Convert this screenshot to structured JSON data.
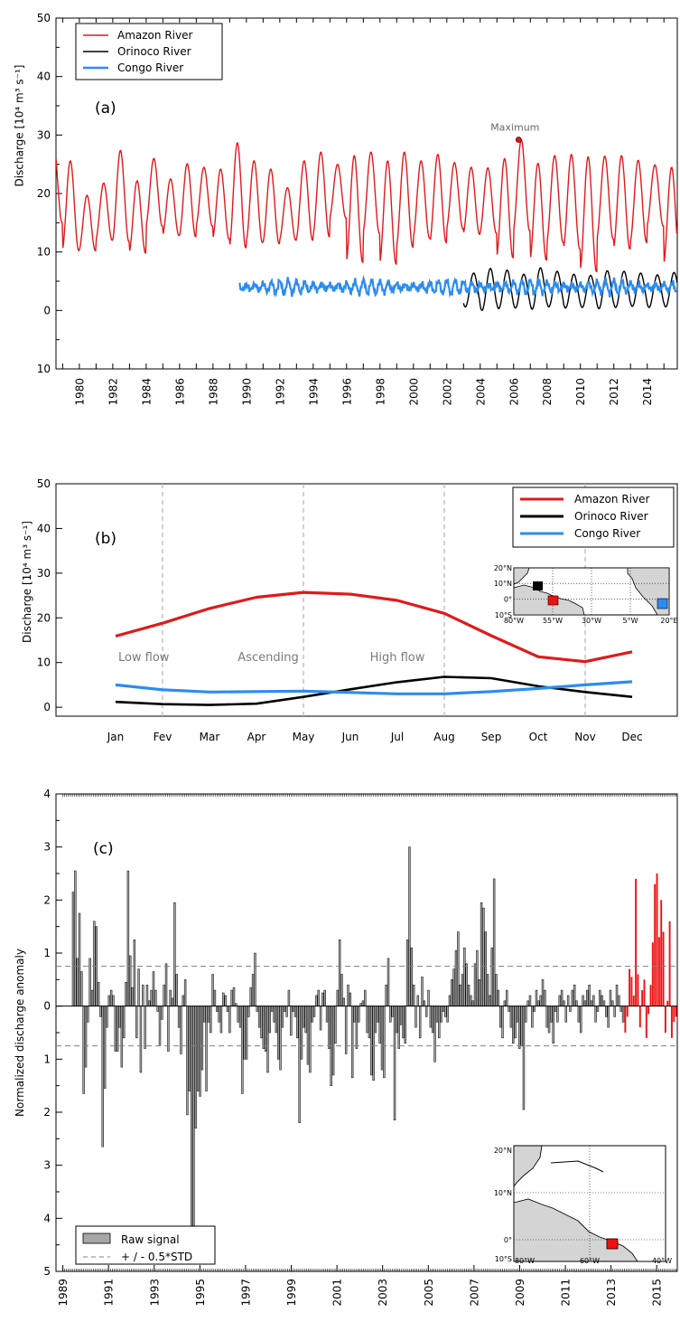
{
  "colors": {
    "amazon": "#e01a1a",
    "orinoco": "#000000",
    "congo": "#2c8cf0",
    "bar_grey": "#a6a6a6",
    "bar_red": "#ee1111",
    "dashed": "#808080",
    "land": "#d4d4d4"
  },
  "chart_data": [
    {
      "type": "line",
      "panel_label": "(a)",
      "ylabel": "Discharge [10⁴ m³ s⁻¹]",
      "ylim": [
        -10,
        50
      ],
      "yticks": [
        -10,
        0,
        10,
        20,
        30,
        40,
        50
      ],
      "ytick_labels": [
        "10",
        "0",
        "10",
        "20",
        "30",
        "40",
        "50"
      ],
      "xlim": [
        1978.6,
        2015.8
      ],
      "xtick_labels": [
        "1980",
        "1982",
        "1984",
        "1986",
        "1988",
        "1990",
        "1992",
        "1994",
        "1996",
        "1998",
        "2000",
        "2002",
        "2004",
        "2006",
        "2008",
        "2010",
        "2012",
        "2014"
      ],
      "legend": {
        "position": "top-left",
        "entries": [
          "Amazon River",
          "Orinoco River",
          "Congo River"
        ]
      },
      "annotation": {
        "text": "Maximum",
        "x": 2006.3,
        "y": 29.2
      },
      "series": [
        {
          "name": "Amazon River",
          "color_key": "amazon",
          "x_start": 1978.6,
          "x_end": 2015.8,
          "peak_month": 5.5,
          "base_mean": 17.8,
          "amplitude": 7.6,
          "year_peaks": [
            28.5,
            25.6,
            19.7,
            21.8,
            27.4,
            22.2,
            26.0,
            22.5,
            25.1,
            24.5,
            24.2,
            28.7,
            25.6,
            24.2,
            21.0,
            25.6,
            27.1,
            25.0,
            26.5,
            27.1,
            25.6,
            27.1,
            25.6,
            26.7,
            25.3,
            24.5,
            24.4,
            26.0,
            29.2,
            25.2,
            26.5,
            26.7,
            26.3,
            26.4,
            26.5,
            25.7,
            24.9,
            24.5
          ],
          "year_troughs": [
            15.0,
            10.2,
            10.2,
            12.0,
            11.8,
            9.8,
            14.4,
            12.8,
            12.6,
            14.4,
            12.2,
            10.7,
            11.6,
            11.4,
            12.0,
            12.0,
            12.6,
            15.8,
            8.2,
            13.2,
            7.9,
            10.8,
            12.4,
            11.6,
            14.0,
            13.0,
            13.2,
            9.0,
            13.6,
            8.6,
            11.6,
            10.5,
            6.6,
            12.2,
            10.5,
            11.6,
            14.4,
            7.8
          ]
        },
        {
          "name": "Orinoco River",
          "color_key": "orinoco",
          "x_start": 2003.0,
          "x_end": 2015.8,
          "peak_month": 7.3,
          "mean": 3.6,
          "amplitude": 3.2,
          "year_peaks": [
            6.4,
            7.2,
            6.9,
            6.2,
            7.3,
            6.7,
            6.2,
            6.0,
            6.8,
            6.7,
            6.4,
            6.1,
            6.5
          ],
          "year_troughs": [
            0.6,
            0.0,
            0.3,
            0.4,
            0.2,
            0.6,
            0.4,
            0.5,
            0.3,
            0.5,
            0.7,
            0.5,
            0.6
          ]
        },
        {
          "name": "Congo River",
          "color_key": "congo",
          "x_start": 1989.6,
          "x_end": 2015.8,
          "mean": 4.0,
          "amplitude": 1.0
        }
      ]
    },
    {
      "type": "line",
      "panel_label": "(b)",
      "ylabel": "Discharge [10⁴ m³ s⁻¹]",
      "ylim": [
        -2,
        50
      ],
      "yticks": [
        0,
        10,
        20,
        30,
        40,
        50
      ],
      "ytick_labels": [
        "0",
        "10",
        "20",
        "30",
        "40",
        "50"
      ],
      "categories": [
        "Jan",
        "Fev",
        "Mar",
        "Apr",
        "May",
        "Jun",
        "Jul",
        "Aug",
        "Sep",
        "Oct",
        "Nov",
        "Dec"
      ],
      "phase_dividers": [
        "Fev",
        "May",
        "Aug",
        "Nov"
      ],
      "phase_labels": [
        {
          "text": "Low flow",
          "x": 0.6,
          "y": 10.3
        },
        {
          "text": "Ascending",
          "x": 3.25,
          "y": 10.3
        },
        {
          "text": "High flow",
          "x": 6.0,
          "y": 10.3
        }
      ],
      "legend": {
        "position": "top-right",
        "entries": [
          "Amazon River",
          "Orinoco River",
          "Congo River"
        ]
      },
      "series": [
        {
          "name": "Amazon River",
          "color_key": "amazon",
          "values": [
            15.9,
            18.8,
            22.1,
            24.6,
            25.7,
            25.3,
            23.9,
            21.0,
            16.0,
            11.3,
            10.2,
            12.4
          ]
        },
        {
          "name": "Orinoco River",
          "color_key": "orinoco",
          "values": [
            1.2,
            0.7,
            0.5,
            0.8,
            2.3,
            4.0,
            5.6,
            6.8,
            6.5,
            4.7,
            3.4,
            2.3
          ]
        },
        {
          "name": "Congo River",
          "color_key": "congo",
          "values": [
            5.0,
            3.9,
            3.4,
            3.5,
            3.6,
            3.3,
            3.0,
            3.0,
            3.5,
            4.2,
            5.0,
            5.7
          ]
        }
      ],
      "inset_map": {
        "lat_labels": [
          "20°N",
          "10°N",
          "0°",
          "10°S"
        ],
        "lon_labels": [
          "80°W",
          "55°W",
          "30°W",
          "5°W",
          "20°E"
        ]
      }
    },
    {
      "type": "bar",
      "panel_label": "(c)",
      "ylabel": "Normalized discharge anomaly",
      "ylim": [
        -5,
        4
      ],
      "yticks": [
        -5,
        -4,
        -3,
        -2,
        -1,
        0,
        1,
        2,
        3,
        4
      ],
      "ytick_labels": [
        "5",
        "4",
        "3",
        "2",
        "1",
        "0",
        "1",
        "2",
        "3",
        "4"
      ],
      "xlim": [
        1988.7,
        2015.9
      ],
      "xtick_labels": [
        "1989",
        "1991",
        "1993",
        "1995",
        "1997",
        "1999",
        "2001",
        "2003",
        "2005",
        "2007",
        "2009",
        "2011",
        "2013",
        "2015"
      ],
      "threshold": 0.75,
      "highlight_from_index": 261,
      "legend": {
        "position": "bottom-left",
        "entries": [
          "Raw signal",
          "+ / - 0.5*STD"
        ]
      },
      "values": [
        2.15,
        2.55,
        0.9,
        1.75,
        0.65,
        -1.65,
        -1.15,
        -0.3,
        0.9,
        0.3,
        1.6,
        1.5,
        0.45,
        -0.2,
        -2.65,
        -1.55,
        -0.4,
        0.2,
        0.3,
        0.2,
        -0.85,
        -0.85,
        -0.4,
        -1.15,
        -0.6,
        0.45,
        2.55,
        0.95,
        0.35,
        1.25,
        -0.6,
        0.7,
        -1.25,
        0.4,
        -0.8,
        0.4,
        0.1,
        0.3,
        0.65,
        0.3,
        -0.1,
        -0.75,
        -0.25,
        0.4,
        0.8,
        -0.85,
        0.3,
        0.15,
        1.95,
        0.6,
        -0.4,
        -0.9,
        0.2,
        0.5,
        -2.05,
        -1.6,
        -4.45,
        -4.15,
        -2.3,
        -1.6,
        -1.7,
        -1.2,
        -0.3,
        -1.6,
        -0.3,
        -0.5,
        0.6,
        0.3,
        -0.1,
        -0.3,
        -0.5,
        0.25,
        0.2,
        -0.1,
        -0.5,
        0.3,
        0.35,
        0.05,
        -0.3,
        -0.4,
        -1.65,
        -1.0,
        -1.0,
        -0.2,
        0.35,
        0.6,
        1.0,
        -0.1,
        -0.4,
        -0.6,
        -0.8,
        -0.85,
        -1.25,
        -0.5,
        -0.1,
        -0.3,
        -0.5,
        -1.0,
        -1.2,
        -0.4,
        -0.1,
        -0.2,
        0.3,
        -0.55,
        -0.1,
        -0.2,
        -0.6,
        -2.2,
        -1.0,
        -0.4,
        -0.5,
        -1.1,
        -1.25,
        -0.3,
        -0.2,
        0.2,
        0.3,
        -0.45,
        0.25,
        0.3,
        -0.3,
        -0.8,
        -1.5,
        -1.3,
        -0.7,
        0.3,
        1.25,
        0.6,
        0.15,
        -0.9,
        0.4,
        0.25,
        -1.35,
        -0.3,
        -0.8,
        -0.3,
        0.05,
        0.1,
        0.3,
        -0.5,
        -0.6,
        -1.3,
        -1.4,
        -0.5,
        -0.3,
        -0.7,
        -1.2,
        -1.35,
        0.4,
        0.9,
        -0.3,
        -0.2,
        -2.15,
        -0.5,
        -0.8,
        -0.35,
        -0.6,
        -0.7,
        1.25,
        3.0,
        1.1,
        0.4,
        -0.4,
        0.2,
        -0.6,
        0.55,
        0.1,
        -0.2,
        0.3,
        -0.4,
        -0.5,
        -1.05,
        -0.3,
        -0.6,
        -0.3,
        -0.1,
        -0.2,
        -0.3,
        0.2,
        0.5,
        0.7,
        1.05,
        1.4,
        0.4,
        0.6,
        1.1,
        0.8,
        0.4,
        0.2,
        0.1,
        0.8,
        1.05,
        0.5,
        1.95,
        1.85,
        1.4,
        0.6,
        0.2,
        1.1,
        2.4,
        0.6,
        0.3,
        -0.4,
        -0.6,
        0.1,
        0.3,
        -0.1,
        -0.4,
        -0.7,
        -0.6,
        -0.3,
        -0.8,
        -0.75,
        -1.95,
        -0.3,
        0.1,
        0.2,
        -0.4,
        -0.1,
        0.3,
        0.1,
        0.2,
        0.5,
        0.3,
        -0.4,
        -0.5,
        -0.3,
        -0.7,
        -0.1,
        -0.3,
        0.2,
        0.3,
        0.1,
        -0.3,
        0.2,
        -0.1,
        0.3,
        0.4,
        0.1,
        -0.3,
        -0.5,
        0.2,
        0.1,
        0.3,
        0.4,
        0.1,
        0.2,
        -0.3,
        -0.1,
        0.3,
        0.2,
        0.1,
        -0.2,
        -0.4,
        0.3,
        0.1,
        -0.2,
        0.4,
        0.2,
        -0.1,
        -0.3,
        -0.5,
        -0.2,
        0.7,
        0.55,
        0.2,
        2.4,
        0.6,
        -0.4,
        0.3,
        0.5,
        -0.6,
        -0.15,
        0.4,
        1.2,
        2.3,
        2.5,
        1.3,
        2.0,
        1.4,
        -0.5,
        0.1,
        1.6,
        -0.6,
        -0.3,
        -0.2
      ],
      "inset_map": {
        "lat_labels": [
          "20°N",
          "10°N",
          "0°",
          "10°S"
        ],
        "lon_labels": [
          "80°W",
          "60°W",
          "40°W"
        ]
      }
    }
  ]
}
